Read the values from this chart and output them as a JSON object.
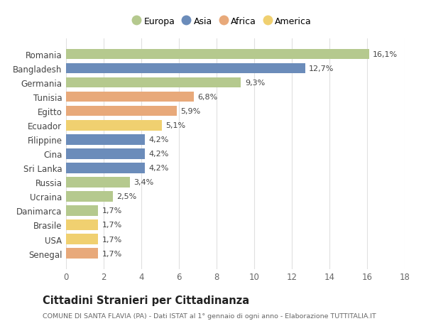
{
  "categories": [
    "Romania",
    "Bangladesh",
    "Germania",
    "Tunisia",
    "Egitto",
    "Ecuador",
    "Filippine",
    "Cina",
    "Sri Lanka",
    "Russia",
    "Ucraina",
    "Danimarca",
    "Brasile",
    "USA",
    "Senegal"
  ],
  "values": [
    16.1,
    12.7,
    9.3,
    6.8,
    5.9,
    5.1,
    4.2,
    4.2,
    4.2,
    3.4,
    2.5,
    1.7,
    1.7,
    1.7,
    1.7
  ],
  "labels": [
    "16,1%",
    "12,7%",
    "9,3%",
    "6,8%",
    "5,9%",
    "5,1%",
    "4,2%",
    "4,2%",
    "4,2%",
    "3,4%",
    "2,5%",
    "1,7%",
    "1,7%",
    "1,7%",
    "1,7%"
  ],
  "colors": [
    "#b5c98e",
    "#6b8cba",
    "#b5c98e",
    "#e8a97a",
    "#e8a97a",
    "#f0d070",
    "#6b8cba",
    "#6b8cba",
    "#6b8cba",
    "#b5c98e",
    "#b5c98e",
    "#b5c98e",
    "#f0d070",
    "#f0d070",
    "#e8a97a"
  ],
  "legend_labels": [
    "Europa",
    "Asia",
    "Africa",
    "America"
  ],
  "legend_colors": [
    "#b5c98e",
    "#6b8cba",
    "#e8a97a",
    "#f0d070"
  ],
  "title": "Cittadini Stranieri per Cittadinanza",
  "subtitle": "COMUNE DI SANTA FLAVIA (PA) - Dati ISTAT al 1° gennaio di ogni anno - Elaborazione TUTTITALIA.IT",
  "xlim": [
    0,
    18
  ],
  "xticks": [
    0,
    2,
    4,
    6,
    8,
    10,
    12,
    14,
    16,
    18
  ],
  "bg_color": "#ffffff",
  "grid_color": "#e0e0e0",
  "bar_alpha": 1.0,
  "bar_height": 0.72
}
